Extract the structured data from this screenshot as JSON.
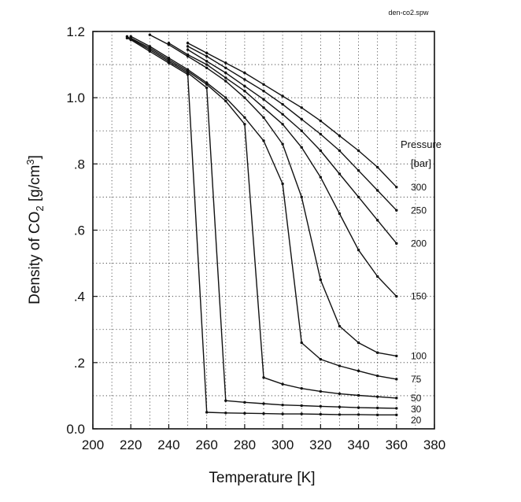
{
  "file_label": "den-co2.spw",
  "chart_data": {
    "type": "line",
    "xlabel": "Temperature [K]",
    "ylabel_parts": {
      "pre": "Density of CO",
      "sub": "2",
      "mid": " [g/cm",
      "sup": "3",
      "post": "]"
    },
    "xlim": [
      200,
      380
    ],
    "ylim": [
      0.0,
      1.2
    ],
    "x_ticks": [
      200,
      220,
      240,
      260,
      280,
      300,
      320,
      340,
      360,
      380
    ],
    "x_tick_labels": [
      "200",
      "220",
      "240",
      "260",
      "280",
      "300",
      "320",
      "340",
      "360",
      "380"
    ],
    "y_ticks": [
      0.0,
      0.2,
      0.4,
      0.6,
      0.8,
      1.0,
      1.2
    ],
    "y_tick_labels": [
      "0.0",
      ".2",
      ".4",
      ".6",
      ".8",
      "1.0",
      "1.2"
    ],
    "grid": true,
    "legend_title": [
      "Pressure",
      "[bar]"
    ],
    "series": [
      {
        "name": "20",
        "x": [
          218,
          220,
          230,
          240,
          250,
          260,
          270,
          280,
          290,
          300,
          310,
          320,
          330,
          340,
          350,
          360
        ],
        "y": [
          1.18,
          1.175,
          1.14,
          1.105,
          1.07,
          0.05,
          0.048,
          0.047,
          0.046,
          0.045,
          0.045,
          0.044,
          0.043,
          0.043,
          0.042,
          0.042
        ]
      },
      {
        "name": "30",
        "x": [
          218,
          220,
          230,
          240,
          250,
          260,
          270,
          280,
          290,
          300,
          310,
          320,
          330,
          340,
          350,
          360
        ],
        "y": [
          1.185,
          1.178,
          1.145,
          1.11,
          1.075,
          1.03,
          0.085,
          0.08,
          0.076,
          0.072,
          0.07,
          0.068,
          0.066,
          0.064,
          0.063,
          0.062
        ]
      },
      {
        "name": "50",
        "x": [
          220,
          230,
          240,
          250,
          260,
          270,
          280,
          290,
          300,
          310,
          320,
          330,
          340,
          350,
          360
        ],
        "y": [
          1.18,
          1.15,
          1.115,
          1.08,
          1.04,
          0.99,
          0.92,
          0.155,
          0.135,
          0.122,
          0.113,
          0.106,
          0.101,
          0.097,
          0.093
        ]
      },
      {
        "name": "75",
        "x": [
          220,
          230,
          240,
          250,
          260,
          270,
          280,
          290,
          300,
          310,
          320,
          330,
          340,
          350,
          360
        ],
        "y": [
          1.185,
          1.155,
          1.12,
          1.085,
          1.045,
          1.0,
          0.94,
          0.87,
          0.74,
          0.26,
          0.21,
          0.19,
          0.175,
          0.16,
          0.15
        ]
      },
      {
        "name": "100",
        "x": [
          230,
          240,
          250,
          260,
          270,
          280,
          290,
          300,
          310,
          320,
          330,
          340,
          350,
          360
        ],
        "y": [
          1.19,
          1.16,
          1.125,
          1.09,
          1.05,
          1.0,
          0.94,
          0.86,
          0.7,
          0.45,
          0.31,
          0.26,
          0.23,
          0.22
        ]
      },
      {
        "name": "150",
        "x": [
          240,
          250,
          260,
          270,
          280,
          290,
          300,
          310,
          320,
          330,
          340,
          350,
          360
        ],
        "y": [
          1.165,
          1.13,
          1.1,
          1.06,
          1.02,
          0.97,
          0.92,
          0.85,
          0.76,
          0.65,
          0.54,
          0.46,
          0.4
        ]
      },
      {
        "name": "200",
        "x": [
          250,
          260,
          270,
          280,
          290,
          300,
          310,
          320,
          330,
          340,
          350,
          360
        ],
        "y": [
          1.145,
          1.11,
          1.075,
          1.035,
          0.995,
          0.95,
          0.9,
          0.84,
          0.77,
          0.7,
          0.63,
          0.56
        ]
      },
      {
        "name": "250",
        "x": [
          250,
          260,
          270,
          280,
          290,
          300,
          310,
          320,
          330,
          340,
          350,
          360
        ],
        "y": [
          1.155,
          1.125,
          1.09,
          1.055,
          1.02,
          0.98,
          0.935,
          0.89,
          0.84,
          0.78,
          0.72,
          0.66
        ]
      },
      {
        "name": "300",
        "x": [
          250,
          260,
          270,
          280,
          290,
          300,
          310,
          320,
          330,
          340,
          350,
          360
        ],
        "y": [
          1.165,
          1.135,
          1.105,
          1.075,
          1.04,
          1.005,
          0.97,
          0.93,
          0.885,
          0.84,
          0.79,
          0.73
        ]
      }
    ]
  }
}
